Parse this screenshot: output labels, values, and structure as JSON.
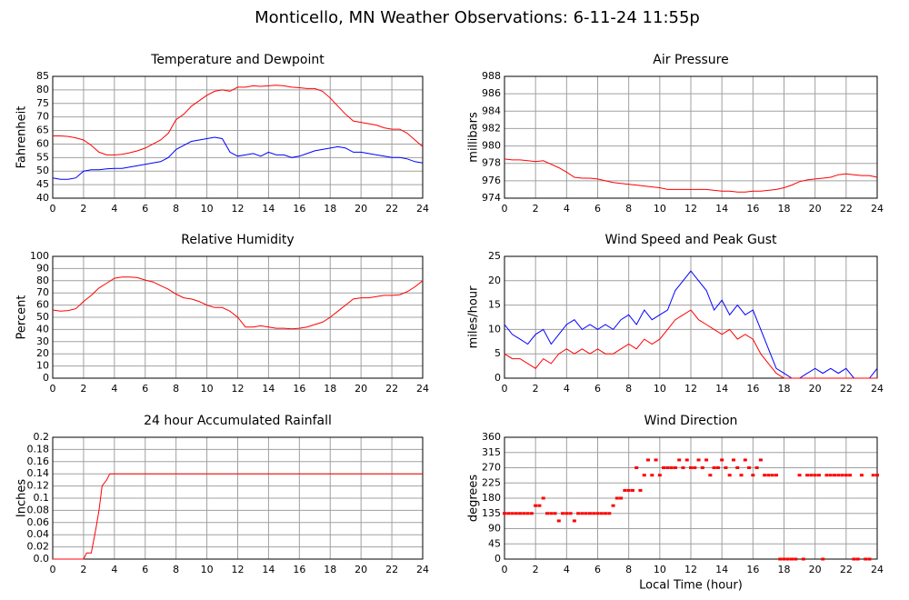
{
  "title": "Monticello, MN Weather Observations: 6-11-24 11:55p",
  "chart_data": [
    {
      "type": "line",
      "title": "Temperature and Dewpoint",
      "ylabel": "Fahrenheit",
      "x": [
        0,
        0.5,
        1,
        1.5,
        2,
        2.5,
        3,
        3.5,
        4,
        4.5,
        5,
        5.5,
        6,
        6.5,
        7,
        7.5,
        8,
        8.5,
        9,
        9.5,
        10,
        10.5,
        11,
        11.5,
        12,
        12.5,
        13,
        13.5,
        14,
        14.5,
        15,
        15.5,
        16,
        16.5,
        17,
        17.5,
        18,
        18.5,
        19,
        19.5,
        20,
        20.5,
        21,
        21.5,
        22,
        22.5,
        23,
        23.5,
        24
      ],
      "series": [
        {
          "color": "#ff0000",
          "values": [
            63,
            63,
            62.8,
            62.3,
            61.5,
            59.5,
            57,
            56,
            56,
            56.2,
            56.8,
            57.5,
            58.5,
            60,
            61.5,
            64,
            69,
            71,
            74,
            76,
            78,
            79.5,
            80,
            79.5,
            81,
            81,
            81.5,
            81.3,
            81.5,
            81.7,
            81.5,
            81,
            80.8,
            80.5,
            80.5,
            79.5,
            77,
            74,
            71,
            68.5,
            68,
            67.5,
            67,
            66,
            65.5,
            65.5,
            64,
            61.5,
            59
          ]
        },
        {
          "color": "#0000ff",
          "values": [
            47.5,
            47,
            47,
            47.5,
            50,
            50.5,
            50.5,
            50.8,
            51,
            51,
            51.5,
            52,
            52.5,
            53,
            53.5,
            55,
            58,
            59.5,
            61,
            61.5,
            62,
            62.5,
            62,
            57,
            55.5,
            56,
            56.5,
            55.5,
            57,
            56,
            56,
            55,
            55.5,
            56.5,
            57.5,
            58,
            58.5,
            59,
            58.5,
            57,
            57,
            56.5,
            56,
            55.5,
            55,
            55,
            54.5,
            53.5,
            53
          ]
        }
      ],
      "xlim": [
        0,
        24
      ],
      "xticks": [
        0,
        2,
        4,
        6,
        8,
        10,
        12,
        14,
        16,
        18,
        20,
        22,
        24
      ],
      "ylim": [
        40,
        85
      ],
      "yticks": [
        40,
        45,
        50,
        55,
        60,
        65,
        70,
        75,
        80,
        85
      ],
      "grid": true
    },
    {
      "type": "line",
      "title": "Air Pressure",
      "ylabel": "millibars",
      "x": [
        0,
        0.5,
        1,
        1.5,
        2,
        2.5,
        3,
        3.5,
        4,
        4.5,
        5,
        5.5,
        6,
        6.5,
        7,
        7.5,
        8,
        8.5,
        9,
        9.5,
        10,
        10.5,
        11,
        11.5,
        12,
        12.5,
        13,
        13.5,
        14,
        14.5,
        15,
        15.5,
        16,
        16.5,
        17,
        17.5,
        18,
        18.5,
        19,
        19.5,
        20,
        20.5,
        21,
        21.5,
        22,
        22.5,
        23,
        23.5,
        24
      ],
      "series": [
        {
          "color": "#ff0000",
          "values": [
            978.5,
            978.4,
            978.4,
            978.3,
            978.2,
            978.3,
            977.9,
            977.5,
            977.0,
            976.4,
            976.3,
            976.3,
            976.2,
            976.0,
            975.8,
            975.7,
            975.6,
            975.5,
            975.4,
            975.3,
            975.2,
            975.0,
            975.0,
            975.0,
            975.0,
            975.0,
            975.0,
            974.9,
            974.8,
            974.8,
            974.7,
            974.7,
            974.8,
            974.8,
            974.9,
            975.0,
            975.2,
            975.5,
            975.9,
            976.1,
            976.2,
            976.3,
            976.4,
            976.7,
            976.8,
            976.7,
            976.6,
            976.6,
            976.4
          ]
        }
      ],
      "xlim": [
        0,
        24
      ],
      "xticks": [
        0,
        2,
        4,
        6,
        8,
        10,
        12,
        14,
        16,
        18,
        20,
        22,
        24
      ],
      "ylim": [
        974,
        988
      ],
      "yticks": [
        974,
        976,
        978,
        980,
        982,
        984,
        986,
        988
      ],
      "grid": true
    },
    {
      "type": "line",
      "title": "Relative Humidity",
      "ylabel": "Percent",
      "x": [
        0,
        0.5,
        1,
        1.5,
        2,
        2.5,
        3,
        3.5,
        4,
        4.5,
        5,
        5.5,
        6,
        6.5,
        7,
        7.5,
        8,
        8.5,
        9,
        9.5,
        10,
        10.5,
        11,
        11.5,
        12,
        12.5,
        13,
        13.5,
        14,
        14.5,
        15,
        15.5,
        16,
        16.5,
        17,
        17.5,
        18,
        18.5,
        19,
        19.5,
        20,
        20.5,
        21,
        21.5,
        22,
        22.5,
        23,
        23.5,
        24
      ],
      "series": [
        {
          "color": "#ff0000",
          "values": [
            56,
            55,
            55.5,
            57,
            63,
            68,
            74,
            78,
            82,
            83,
            83,
            82.5,
            80.5,
            79,
            76,
            73,
            69,
            66,
            65,
            63,
            60,
            58,
            58,
            55,
            50,
            42,
            42,
            43,
            42,
            41,
            41,
            40.5,
            41,
            42,
            44,
            46,
            50,
            55,
            60,
            65,
            66,
            66,
            67,
            68,
            68,
            68.5,
            71,
            75,
            80
          ]
        }
      ],
      "xlim": [
        0,
        24
      ],
      "xticks": [
        0,
        2,
        4,
        6,
        8,
        10,
        12,
        14,
        16,
        18,
        20,
        22,
        24
      ],
      "ylim": [
        0,
        100
      ],
      "yticks": [
        0,
        10,
        20,
        30,
        40,
        50,
        60,
        70,
        80,
        90,
        100
      ],
      "grid": true
    },
    {
      "type": "line",
      "title": "Wind Speed and Peak Gust",
      "ylabel": "miles/hour",
      "x": [
        0,
        0.5,
        1,
        1.5,
        2,
        2.5,
        3,
        3.5,
        4,
        4.5,
        5,
        5.5,
        6,
        6.5,
        7,
        7.5,
        8,
        8.5,
        9,
        9.5,
        10,
        10.5,
        11,
        11.5,
        12,
        12.5,
        13,
        13.5,
        14,
        14.5,
        15,
        15.5,
        16,
        16.5,
        17,
        17.5,
        18,
        18.5,
        19,
        19.5,
        20,
        20.5,
        21,
        21.5,
        22,
        22.5,
        23,
        23.5,
        24
      ],
      "series": [
        {
          "color": "#0000ff",
          "values": [
            11,
            9,
            8,
            7,
            9,
            10,
            7,
            9,
            11,
            12,
            10,
            11,
            10,
            11,
            10,
            12,
            13,
            11,
            14,
            12,
            13,
            14,
            18,
            20,
            22,
            20,
            18,
            14,
            16,
            13,
            15,
            13,
            14,
            10,
            6,
            2,
            1,
            0,
            0,
            1,
            2,
            1,
            2,
            1,
            2,
            0,
            0,
            0,
            2
          ]
        },
        {
          "color": "#ff0000",
          "values": [
            5,
            4,
            4,
            3,
            2,
            4,
            3,
            5,
            6,
            5,
            6,
            5,
            6,
            5,
            5,
            6,
            7,
            6,
            8,
            7,
            8,
            10,
            12,
            13,
            14,
            12,
            11,
            10,
            9,
            10,
            8,
            9,
            8,
            5,
            3,
            1,
            0,
            0,
            0,
            0,
            0,
            0,
            0,
            0,
            0,
            0,
            0,
            0,
            0
          ]
        }
      ],
      "xlim": [
        0,
        24
      ],
      "xticks": [
        0,
        2,
        4,
        6,
        8,
        10,
        12,
        14,
        16,
        18,
        20,
        22,
        24
      ],
      "ylim": [
        0,
        25
      ],
      "yticks": [
        0,
        5,
        10,
        15,
        20,
        25
      ],
      "grid": true
    },
    {
      "type": "line",
      "title": "24 hour Accumulated Rainfall",
      "ylabel": "Inches",
      "x": [
        0,
        2,
        2.2,
        2.5,
        2.8,
        3,
        3.2,
        3.5,
        3.7,
        24
      ],
      "series": [
        {
          "color": "#ff0000",
          "values": [
            0,
            0,
            0.01,
            0.01,
            0.05,
            0.08,
            0.12,
            0.13,
            0.14,
            0.14
          ]
        }
      ],
      "xlim": [
        0,
        24
      ],
      "xticks": [
        0,
        2,
        4,
        6,
        8,
        10,
        12,
        14,
        16,
        18,
        20,
        22,
        24
      ],
      "ylim": [
        0,
        0.2
      ],
      "yticks": [
        {
          "value": 0,
          "label": "0.0"
        },
        0.02,
        0.04,
        0.06,
        0.08,
        0.1,
        0.12,
        0.14,
        0.16,
        0.18,
        0.2
      ],
      "grid": true
    },
    {
      "type": "scatter",
      "title": "Wind Direction",
      "ylabel": "degrees",
      "xlabel": "Local Time (hour)",
      "x": [
        0,
        0.25,
        0.5,
        0.75,
        1,
        1.25,
        1.5,
        1.75,
        2,
        2.25,
        2.5,
        2.75,
        3,
        3.25,
        3.5,
        3.75,
        4,
        4.25,
        4.5,
        4.75,
        5,
        5.25,
        5.5,
        5.75,
        6,
        6.25,
        6.5,
        6.75,
        7,
        7.25,
        7.5,
        7.75,
        8,
        8.25,
        8.5,
        8.75,
        9,
        9.25,
        9.5,
        9.75,
        10,
        10.25,
        10.5,
        10.75,
        11,
        11.25,
        11.5,
        11.75,
        12,
        12.25,
        12.5,
        12.75,
        13,
        13.25,
        13.5,
        13.75,
        14,
        14.25,
        14.5,
        14.75,
        15,
        15.25,
        15.5,
        15.75,
        16,
        16.25,
        16.5,
        16.75,
        17,
        17.25,
        17.5,
        17.75,
        18,
        18.25,
        18.5,
        18.75,
        19,
        19.25,
        19.5,
        19.75,
        20,
        20.25,
        20.5,
        20.75,
        21,
        21.25,
        21.5,
        21.75,
        22,
        22.25,
        22.5,
        22.75,
        23,
        23.25,
        23.5,
        23.75,
        24
      ],
      "series": [
        {
          "color": "#ff0000",
          "values": [
            135,
            135,
            135,
            135,
            135,
            135,
            135,
            135,
            158,
            158,
            180,
            135,
            135,
            135,
            113,
            135,
            135,
            135,
            113,
            135,
            135,
            135,
            135,
            135,
            135,
            135,
            135,
            135,
            158,
            180,
            180,
            203,
            203,
            203,
            270,
            203,
            248,
            293,
            248,
            293,
            248,
            270,
            270,
            270,
            270,
            293,
            270,
            293,
            270,
            270,
            293,
            270,
            293,
            248,
            270,
            270,
            293,
            270,
            248,
            293,
            270,
            248,
            293,
            270,
            248,
            270,
            293,
            248,
            248,
            248,
            248,
            0,
            0,
            0,
            0,
            0,
            248,
            0,
            248,
            248,
            248,
            248,
            0,
            248,
            248,
            248,
            248,
            248,
            248,
            248,
            0,
            0,
            248,
            0,
            0,
            248,
            248
          ]
        }
      ],
      "xlim": [
        0,
        24
      ],
      "xticks": [
        0,
        2,
        4,
        6,
        8,
        10,
        12,
        14,
        16,
        18,
        20,
        22,
        24
      ],
      "ylim": [
        0,
        360
      ],
      "yticks": [
        0,
        45,
        90,
        135,
        180,
        225,
        270,
        315,
        360
      ],
      "grid": true
    }
  ]
}
